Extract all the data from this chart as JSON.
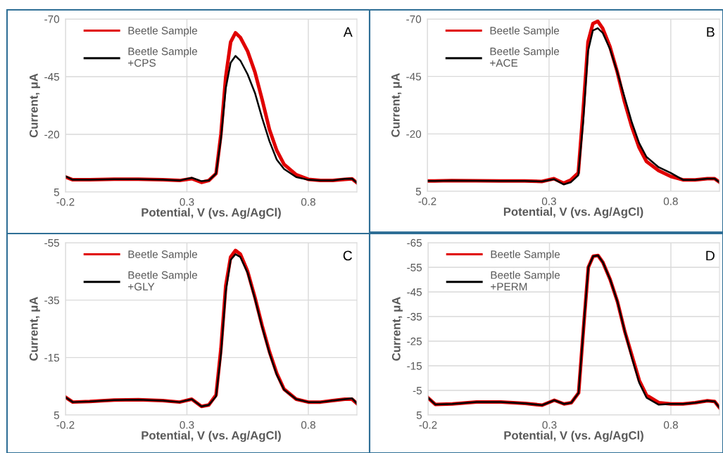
{
  "chart_data": [
    {
      "type": "line",
      "xlabel": "Potential, V (vs. Ag/AgCl)",
      "ylabel": "Current, μA",
      "annotations": [
        "A"
      ],
      "xlim": [
        -0.2,
        1.0
      ],
      "xticks": [
        -0.2,
        0.3,
        0.8
      ],
      "ylim": [
        5,
        -70
      ],
      "yticks": [
        -70,
        -45,
        -20,
        5
      ],
      "grid": true,
      "legend": "top left",
      "x": [
        -0.2,
        -0.17,
        -0.1,
        0,
        0.1,
        0.2,
        0.27,
        0.32,
        0.36,
        0.39,
        0.42,
        0.44,
        0.46,
        0.48,
        0.5,
        0.52,
        0.55,
        0.58,
        0.61,
        0.64,
        0.67,
        0.7,
        0.75,
        0.8,
        0.85,
        0.9,
        0.95,
        0.98,
        1.0
      ],
      "series": [
        {
          "name": "Beetle Sample",
          "color": "#e00000",
          "values": [
            -1.5,
            -0.3,
            -0.3,
            -0.6,
            -0.6,
            -0.3,
            0,
            -0.8,
            0.8,
            0,
            -3,
            -20,
            -45,
            -60,
            -64,
            -62,
            -56,
            -47,
            -35,
            -22,
            -13,
            -7,
            -2.5,
            -0.5,
            0,
            0,
            -0.5,
            -0.7,
            1
          ]
        },
        {
          "name": "Beetle Sample\n+CPS",
          "color": "#000000",
          "values": [
            -1.8,
            -0.3,
            -0.3,
            -0.6,
            -0.6,
            -0.3,
            0,
            -1.2,
            0.3,
            0,
            -3,
            -18,
            -40,
            -51,
            -54,
            -52,
            -46,
            -38,
            -27,
            -17,
            -9,
            -5,
            -1.5,
            -0.3,
            0,
            0,
            -0.7,
            -0.8,
            1
          ]
        }
      ]
    },
    {
      "type": "line",
      "xlabel": "Potential, V (vs. Ag/AgCl)",
      "ylabel": "Current, μA",
      "annotations": [
        "B"
      ],
      "xlim": [
        -0.2,
        1.0
      ],
      "xticks": [
        -0.2,
        0.3,
        0.8
      ],
      "ylim": [
        5,
        -70
      ],
      "yticks": [
        -70,
        -45,
        -20,
        5
      ],
      "grid": true,
      "legend": "top left",
      "x": [
        -0.2,
        -0.17,
        -0.1,
        0,
        0.1,
        0.2,
        0.27,
        0.32,
        0.36,
        0.39,
        0.42,
        0.44,
        0.46,
        0.48,
        0.5,
        0.52,
        0.55,
        0.58,
        0.61,
        0.64,
        0.67,
        0.7,
        0.75,
        0.8,
        0.85,
        0.9,
        0.95,
        0.98,
        1.0
      ],
      "series": [
        {
          "name": "Beetle Sample",
          "color": "#e00000",
          "values": [
            0.5,
            0.5,
            0.3,
            0.4,
            0.5,
            0.5,
            0.7,
            -0.5,
            1.5,
            0,
            -3,
            -30,
            -60,
            -68,
            -69,
            -66,
            -58,
            -47,
            -34,
            -23,
            -14,
            -8,
            -4,
            -1.5,
            0,
            0,
            -0.5,
            -0.5,
            1
          ]
        },
        {
          "name": "Beetle Sample\n+ACE",
          "color": "#000000",
          "values": [
            0.5,
            0.5,
            0.3,
            0.4,
            0.5,
            0.5,
            0.7,
            -0.3,
            2,
            1,
            -2,
            -25,
            -56,
            -65,
            -66,
            -64,
            -57,
            -47,
            -36,
            -25,
            -16,
            -10,
            -5.5,
            -3,
            0,
            0,
            -0.5,
            -0.5,
            1
          ]
        }
      ]
    },
    {
      "type": "line",
      "xlabel": "Potential, V (vs. Ag/AgCl)",
      "ylabel": "Current, μA",
      "annotations": [
        "C"
      ],
      "xlim": [
        -0.2,
        1.0
      ],
      "xticks": [
        -0.2,
        0.3,
        0.8
      ],
      "ylim": [
        5,
        -55
      ],
      "yticks": [
        -55,
        -35,
        -15,
        5
      ],
      "grid": true,
      "legend": "top left",
      "x": [
        -0.2,
        -0.17,
        -0.1,
        0,
        0.1,
        0.2,
        0.27,
        0.32,
        0.36,
        0.39,
        0.42,
        0.44,
        0.46,
        0.48,
        0.5,
        0.52,
        0.55,
        0.58,
        0.61,
        0.64,
        0.67,
        0.7,
        0.75,
        0.8,
        0.85,
        0.9,
        0.95,
        0.98,
        1.0
      ],
      "series": [
        {
          "name": "Beetle Sample",
          "color": "#e00000",
          "values": [
            -1.2,
            0.5,
            0.3,
            -0.2,
            -0.3,
            0,
            0.5,
            -0.5,
            2,
            1.5,
            -2,
            -18,
            -40,
            -50,
            -52.3,
            -51,
            -45,
            -36,
            -26,
            -17,
            -9.5,
            -4,
            -0.5,
            0.5,
            0.5,
            0,
            -0.5,
            -0.5,
            1
          ]
        },
        {
          "name": "Beetle Sample\n+GLY",
          "color": "#000000",
          "values": [
            -1.2,
            0.5,
            0.3,
            -0.2,
            -0.3,
            0,
            0.5,
            -0.5,
            2,
            1.5,
            -1.5,
            -16,
            -38,
            -49,
            -51,
            -50,
            -44.5,
            -35.5,
            -25.5,
            -16.5,
            -9,
            -3.8,
            -0.5,
            0.5,
            0.5,
            0,
            -0.5,
            -0.8,
            1
          ]
        }
      ]
    },
    {
      "type": "line",
      "xlabel": "Potential, V (vs. Ag/AgCl)",
      "ylabel": "Current, μA",
      "annotations": [
        "D"
      ],
      "xlim": [
        -0.2,
        1.0
      ],
      "xticks": [
        -0.2,
        0.3,
        0.8
      ],
      "ylim": [
        5,
        -65
      ],
      "yticks": [
        -65,
        -55,
        -45,
        -35,
        -25,
        -15,
        -5,
        5
      ],
      "grid": true,
      "legend": "top left",
      "x": [
        -0.2,
        -0.17,
        -0.1,
        0,
        0.1,
        0.2,
        0.27,
        0.32,
        0.36,
        0.39,
        0.42,
        0.44,
        0.46,
        0.48,
        0.5,
        0.52,
        0.55,
        0.58,
        0.61,
        0.64,
        0.67,
        0.7,
        0.75,
        0.8,
        0.85,
        0.9,
        0.95,
        0.98,
        1.0
      ],
      "series": [
        {
          "name": "Beetle Sample",
          "color": "#e00000",
          "values": [
            -2,
            0.7,
            0.5,
            -0.3,
            -0.3,
            0.3,
            1,
            -1,
            0.5,
            0,
            -4,
            -30,
            -55,
            -59.5,
            -59.8,
            -57,
            -50,
            -41,
            -29,
            -19,
            -9,
            -3,
            0,
            0.5,
            0.5,
            0,
            -0.8,
            -0.5,
            2
          ]
        },
        {
          "name": "Beetle Sample\n+PERM",
          "color": "#000000",
          "values": [
            -2,
            0.7,
            0.5,
            -0.3,
            -0.3,
            0.3,
            1,
            -1,
            0.5,
            0,
            -4,
            -30,
            -55,
            -59.5,
            -59.8,
            -57,
            -50,
            -41,
            -29,
            -18,
            -8,
            -2,
            0.8,
            0.5,
            0.5,
            0,
            -0.8,
            -0.5,
            2
          ]
        }
      ]
    }
  ]
}
